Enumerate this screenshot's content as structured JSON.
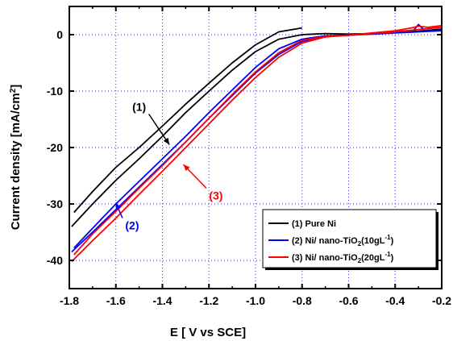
{
  "chart_data": {
    "type": "line",
    "xlabel": "E [ V vs SCE]",
    "ylabel": "Current density [mA/cm",
    "ylabel_sup": "2",
    "ylabel_end": "]",
    "xlim": [
      -1.8,
      -0.2
    ],
    "ylim": [
      -45,
      5
    ],
    "xticks": [
      -1.8,
      -1.6,
      -1.4,
      -1.2,
      -1.0,
      -0.8,
      -0.6,
      -0.4,
      -0.2
    ],
    "xtick_labels": [
      "-1.8",
      "-1.6",
      "-1.4",
      "-1.2",
      "-1.0",
      "-0.8",
      "-0.6",
      "-0.4",
      "-0.2"
    ],
    "yticks": [
      0,
      -10,
      -20,
      -30,
      -40
    ],
    "ytick_labels": [
      "0",
      "-10",
      "-20",
      "-30",
      "-40"
    ],
    "grid": true,
    "legend_position": "bottom-right",
    "series": [
      {
        "name": "(1) Pure Ni",
        "color": "#000000",
        "forward": [
          [
            -1.78,
            -31.5
          ],
          [
            -1.7,
            -27.8
          ],
          [
            -1.6,
            -23.5
          ],
          [
            -1.5,
            -20.0
          ],
          [
            -1.4,
            -16.2
          ],
          [
            -1.3,
            -12.3
          ],
          [
            -1.2,
            -8.6
          ],
          [
            -1.1,
            -5.0
          ],
          [
            -1.0,
            -1.8
          ],
          [
            -0.9,
            0.5
          ],
          [
            -0.8,
            1.2
          ]
        ],
        "reverse": [
          [
            -1.79,
            -34.0
          ],
          [
            -1.7,
            -30.0
          ],
          [
            -1.6,
            -25.8
          ],
          [
            -1.5,
            -22.0
          ],
          [
            -1.4,
            -18.0
          ],
          [
            -1.3,
            -13.8
          ],
          [
            -1.2,
            -10.0
          ],
          [
            -1.1,
            -6.3
          ],
          [
            -1.0,
            -3.0
          ],
          [
            -0.9,
            -0.8
          ],
          [
            -0.8,
            0.0
          ],
          [
            -0.7,
            0.2
          ],
          [
            -0.6,
            0.1
          ],
          [
            -0.5,
            0.2
          ],
          [
            -0.4,
            0.4
          ],
          [
            -0.3,
            0.6
          ],
          [
            -0.2,
            1.0
          ]
        ]
      },
      {
        "name": "(2) Ni/ nano-TiO2(10gL-1)",
        "label_main": "(2) Ni/ nano-TiO",
        "label_sub": "2",
        "label_mid": "(10gL",
        "label_sup": "-1",
        "label_end": ")",
        "color": "#0000ff",
        "forward": [
          [
            -1.78,
            -37.8
          ],
          [
            -1.7,
            -34.3
          ],
          [
            -1.6,
            -30.0
          ],
          [
            -1.5,
            -26.0
          ],
          [
            -1.4,
            -22.0
          ],
          [
            -1.3,
            -18.0
          ],
          [
            -1.2,
            -13.8
          ],
          [
            -1.1,
            -9.8
          ],
          [
            -1.0,
            -5.8
          ],
          [
            -0.9,
            -2.5
          ],
          [
            -0.8,
            -0.8
          ],
          [
            -0.7,
            -0.2
          ],
          [
            -0.6,
            -0.1
          ],
          [
            -0.5,
            0.2
          ],
          [
            -0.4,
            0.5
          ],
          [
            -0.32,
            0.8
          ],
          [
            -0.3,
            1.8
          ],
          [
            -0.27,
            0.6
          ],
          [
            -0.2,
            0.8
          ]
        ],
        "reverse": [
          [
            -1.79,
            -38.5
          ],
          [
            -1.7,
            -35.0
          ],
          [
            -1.6,
            -31.0
          ],
          [
            -1.5,
            -27.0
          ],
          [
            -1.4,
            -23.0
          ],
          [
            -1.3,
            -19.0
          ],
          [
            -1.2,
            -14.8
          ],
          [
            -1.1,
            -10.8
          ],
          [
            -1.0,
            -6.8
          ],
          [
            -0.9,
            -3.5
          ],
          [
            -0.8,
            -1.2
          ],
          [
            -0.7,
            -0.3
          ],
          [
            -0.6,
            -0.1
          ],
          [
            -0.5,
            0.1
          ],
          [
            -0.4,
            0.3
          ],
          [
            -0.3,
            0.5
          ],
          [
            -0.2,
            0.7
          ]
        ]
      },
      {
        "name": "(3) Ni/ nano-TiO2(20gL-1)",
        "label_main": "(3) Ni/ nano-TiO",
        "label_sub": "2",
        "label_mid": "(20gL",
        "label_sup": "-1",
        "label_end": ")",
        "color": "#ff0000",
        "forward": [
          [
            -1.78,
            -39.0
          ],
          [
            -1.7,
            -35.3
          ],
          [
            -1.6,
            -31.3
          ],
          [
            -1.5,
            -27.2
          ],
          [
            -1.4,
            -23.2
          ],
          [
            -1.3,
            -19.0
          ],
          [
            -1.2,
            -14.8
          ],
          [
            -1.1,
            -10.6
          ],
          [
            -1.0,
            -6.6
          ],
          [
            -0.9,
            -3.2
          ],
          [
            -0.8,
            -1.0
          ],
          [
            -0.7,
            -0.3
          ],
          [
            -0.6,
            -0.1
          ],
          [
            -0.5,
            0.3
          ],
          [
            -0.4,
            0.7
          ],
          [
            -0.33,
            1.2
          ],
          [
            -0.3,
            1.5
          ],
          [
            -0.26,
            1.3
          ],
          [
            -0.2,
            1.6
          ]
        ],
        "reverse": [
          [
            -1.79,
            -40.2
          ],
          [
            -1.7,
            -36.5
          ],
          [
            -1.6,
            -32.5
          ],
          [
            -1.5,
            -28.3
          ],
          [
            -1.4,
            -24.2
          ],
          [
            -1.3,
            -20.0
          ],
          [
            -1.2,
            -15.8
          ],
          [
            -1.1,
            -11.6
          ],
          [
            -1.0,
            -7.6
          ],
          [
            -0.9,
            -4.0
          ],
          [
            -0.8,
            -1.5
          ],
          [
            -0.7,
            -0.4
          ],
          [
            -0.6,
            -0.1
          ],
          [
            -0.5,
            0.2
          ],
          [
            -0.4,
            0.5
          ],
          [
            -0.3,
            0.9
          ],
          [
            -0.2,
            1.3
          ]
        ]
      }
    ],
    "annotations": [
      {
        "text": "(1)",
        "color": "#000000",
        "at": [
          -1.5,
          -13.5
        ],
        "arrow_to": [
          -1.37,
          -19.5
        ]
      },
      {
        "text": "(2)",
        "color": "#0000ff",
        "at": [
          -1.53,
          -34.5
        ],
        "arrow_to": [
          -1.6,
          -29.8
        ]
      },
      {
        "text": "(3)",
        "color": "#ff0000",
        "at": [
          -1.17,
          -29.2
        ],
        "arrow_to": [
          -1.31,
          -23.0
        ]
      }
    ]
  }
}
